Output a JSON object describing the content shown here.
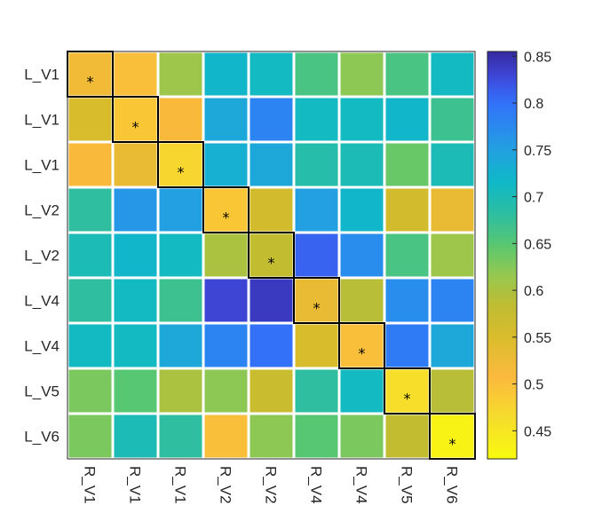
{
  "chart_data": {
    "type": "heatmap",
    "row_labels": [
      "L_V1",
      "L_V1",
      "L_V1",
      "L_V2",
      "L_V2",
      "L_V4",
      "L_V4",
      "L_V5",
      "L_V6"
    ],
    "col_labels": [
      "R_V1",
      "R_V1",
      "R_V1",
      "R_V2",
      "R_V2",
      "R_V4",
      "R_V4",
      "R_V5",
      "R_V6"
    ],
    "values": [
      [
        0.52,
        0.5,
        0.61,
        0.72,
        0.71,
        0.66,
        0.62,
        0.66,
        0.71
      ],
      [
        0.55,
        0.49,
        0.51,
        0.74,
        0.78,
        0.71,
        0.71,
        0.72,
        0.67
      ],
      [
        0.51,
        0.53,
        0.47,
        0.73,
        0.74,
        0.69,
        0.7,
        0.64,
        0.7
      ],
      [
        0.68,
        0.76,
        0.75,
        0.49,
        0.56,
        0.75,
        0.72,
        0.56,
        0.53
      ],
      [
        0.7,
        0.72,
        0.71,
        0.6,
        0.58,
        0.81,
        0.77,
        0.66,
        0.61
      ],
      [
        0.68,
        0.71,
        0.67,
        0.83,
        0.84,
        0.53,
        0.59,
        0.77,
        0.78
      ],
      [
        0.71,
        0.71,
        0.74,
        0.78,
        0.8,
        0.55,
        0.5,
        0.79,
        0.74
      ],
      [
        0.63,
        0.65,
        0.6,
        0.62,
        0.57,
        0.68,
        0.71,
        0.46,
        0.59
      ],
      [
        0.63,
        0.7,
        0.68,
        0.5,
        0.62,
        0.65,
        0.63,
        0.58,
        0.43
      ]
    ],
    "highlighted": "diagonal",
    "highlight_marker": "*",
    "colorbar": {
      "colormap": "parula",
      "min": 0.42,
      "max": 0.855,
      "ticks": [
        "0.45",
        "0.5",
        "0.55",
        "0.6",
        "0.65",
        "0.7",
        "0.75",
        "0.8",
        "0.85"
      ],
      "tick_values": [
        0.45,
        0.5,
        0.55,
        0.6,
        0.65,
        0.7,
        0.75,
        0.8,
        0.85
      ]
    },
    "grid": true,
    "legend": "colorbar-right"
  }
}
